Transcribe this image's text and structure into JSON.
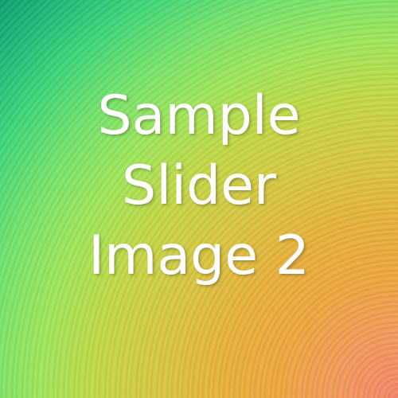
{
  "slide": {
    "caption_lines": [
      "Sample",
      "Slider",
      "Image 2"
    ]
  },
  "colors": {
    "top_left": "#0b9a6f",
    "middle": "#c2d846",
    "bottom_right": "#f58468",
    "text": "#ffffff"
  }
}
